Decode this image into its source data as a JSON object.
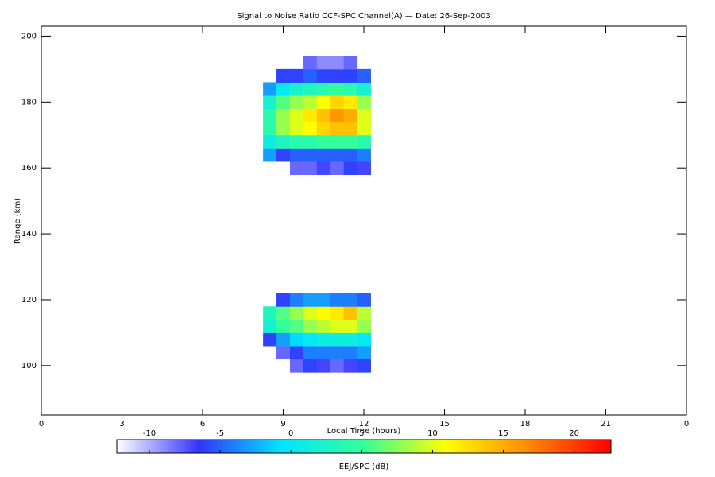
{
  "chart_data": {
    "type": "heatmap",
    "title": "Signal to Noise Ratio CCF-SPC Channel(A) — Date: 26-Sep-2003",
    "x_label": "Local Time (hours)",
    "y_label": "Range (km)",
    "colorbar_label": "EEJ/SPC (dB)",
    "xlim": [
      0,
      24
    ],
    "xticks": [
      0,
      3,
      6,
      9,
      12,
      15,
      18,
      21,
      {
        "value": 24,
        "label": "0"
      }
    ],
    "ylim": [
      85,
      203
    ],
    "yticks": [
      100,
      120,
      140,
      160,
      180,
      200
    ],
    "clim": [
      -12.3,
      22.6
    ],
    "cticks": [
      -10,
      -5,
      0,
      5,
      10,
      15,
      20
    ],
    "colorscale": [
      "#ffffff",
      "#3333ff",
      "#00e5ff",
      "#33ff99",
      "#ffff00",
      "#ff8800",
      "#ff0000"
    ],
    "x_edges": [
      8.25,
      8.75,
      9.25,
      9.75,
      10.25,
      10.75,
      11.25,
      11.75,
      12.25
    ],
    "y_edges": [
      98,
      102,
      106,
      110,
      114,
      118,
      122,
      126,
      130,
      134,
      138,
      142,
      146,
      150,
      154,
      158,
      162,
      166,
      170,
      174,
      178,
      182,
      186,
      190,
      194
    ],
    "values": [
      [
        null,
        null,
        -8,
        -6,
        -7,
        -8,
        -7,
        -6
      ],
      [
        null,
        -8,
        -6,
        -4,
        -4,
        -4,
        -4,
        -3
      ],
      [
        -6,
        -3,
        -1,
        0,
        1,
        1,
        1,
        0
      ],
      [
        2,
        5,
        6,
        8,
        9,
        10,
        10,
        8
      ],
      [
        3,
        6,
        8,
        10,
        11,
        12,
        14,
        9
      ],
      [
        null,
        -6,
        -4,
        -3,
        -3,
        -4,
        -4,
        -5
      ],
      [
        null,
        null,
        null,
        null,
        null,
        null,
        null,
        null
      ],
      [
        null,
        null,
        null,
        null,
        null,
        null,
        null,
        null
      ],
      [
        null,
        null,
        null,
        null,
        null,
        null,
        null,
        null
      ],
      [
        null,
        null,
        null,
        null,
        null,
        null,
        null,
        null
      ],
      [
        null,
        null,
        null,
        null,
        null,
        null,
        null,
        null
      ],
      [
        null,
        null,
        null,
        null,
        null,
        null,
        null,
        null
      ],
      [
        null,
        null,
        null,
        null,
        null,
        null,
        null,
        null
      ],
      [
        null,
        null,
        null,
        null,
        null,
        null,
        null,
        null
      ],
      [
        null,
        null,
        null,
        null,
        null,
        null,
        null,
        null
      ],
      [
        null,
        null,
        -8,
        -8,
        -7,
        -8,
        -6,
        -7
      ],
      [
        -3,
        -6,
        -5,
        -5,
        -5,
        -5,
        -5,
        -4
      ],
      [
        1,
        3,
        4,
        4,
        5,
        5,
        5,
        4
      ],
      [
        4,
        8,
        10,
        11,
        13,
        14,
        14,
        10
      ],
      [
        4,
        8,
        10,
        12,
        14,
        16,
        15,
        10
      ],
      [
        2,
        6,
        8,
        9,
        11,
        13,
        12,
        8
      ],
      [
        -3,
        0,
        2,
        3,
        4,
        5,
        4,
        2
      ],
      [
        null,
        -6,
        -6,
        -5,
        -6,
        -6,
        -6,
        -5
      ],
      [
        null,
        null,
        null,
        -8,
        -9,
        -9,
        -8,
        null
      ]
    ]
  }
}
